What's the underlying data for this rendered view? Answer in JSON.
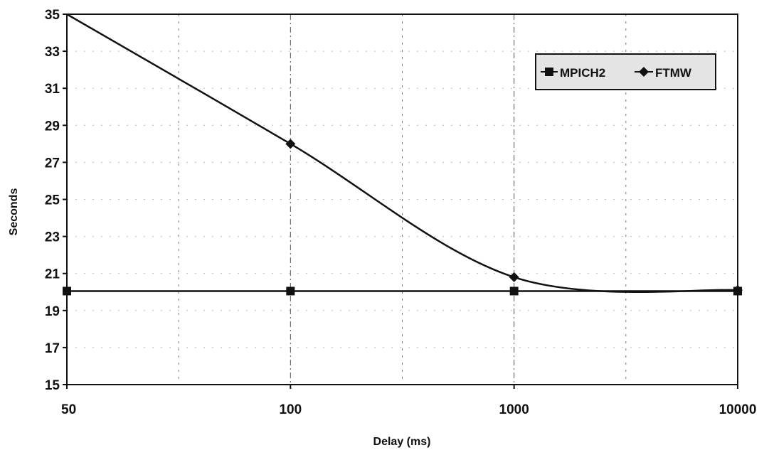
{
  "chart_data": {
    "type": "line",
    "xlabel": "Delay (ms)",
    "ylabel": "Seconds",
    "x_scale": "log",
    "x_ticks": [
      "50",
      "100",
      "1000",
      "10000"
    ],
    "y_ticks": [
      "15",
      "17",
      "19",
      "21",
      "23",
      "25",
      "27",
      "29",
      "31",
      "33",
      "35"
    ],
    "xlim": [
      50,
      10000
    ],
    "ylim": [
      15,
      35
    ],
    "grid": true,
    "legend_position": "top-right",
    "series": [
      {
        "name": "MPICH2",
        "marker": "square",
        "color": "#111111",
        "x": [
          50,
          100,
          1000,
          10000
        ],
        "y": [
          20.05,
          20.05,
          20.05,
          20.05
        ]
      },
      {
        "name": "FTMW",
        "marker": "diamond",
        "color": "#111111",
        "x": [
          50,
          100,
          1000,
          10000
        ],
        "y": [
          35.0,
          28.0,
          20.8,
          20.1
        ]
      }
    ]
  }
}
